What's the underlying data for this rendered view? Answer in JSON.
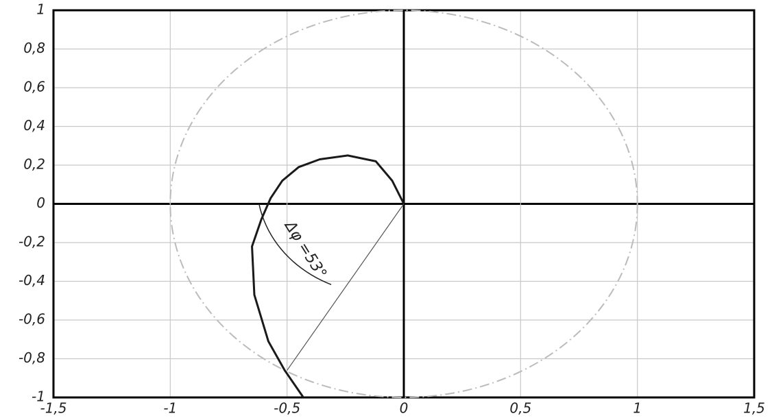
{
  "chart_data": {
    "type": "line",
    "x": [
      0,
      -0.05,
      -0.12,
      -0.24,
      -0.36,
      -0.45,
      -0.52,
      -0.57,
      -0.61,
      -0.65,
      -0.64,
      -0.58,
      -0.51,
      -0.43
    ],
    "series": [
      {
        "color": "#1a1a1a",
        "values": [
          0,
          0.12,
          0.22,
          0.25,
          0.23,
          0.19,
          0.12,
          0.03,
          -0.08,
          -0.22,
          -0.47,
          -0.71,
          -0.86,
          -1.0
        ]
      }
    ],
    "xlim": [
      -1.5,
      1.5
    ],
    "xticks": [
      {
        "value": -1.5,
        "label": "-1,5"
      },
      -1,
      {
        "value": -0.5,
        "label": "-0,5"
      },
      0,
      {
        "value": 0.5,
        "label": "0,5"
      },
      1,
      {
        "value": 1.5,
        "label": "1,5"
      }
    ],
    "ylim": [
      -1,
      1
    ],
    "yticks": [
      -1,
      {
        "value": -0.8,
        "label": "-0,8"
      },
      {
        "value": -0.6,
        "label": "-0,6"
      },
      {
        "value": -0.4,
        "label": "-0,4"
      },
      {
        "value": -0.2,
        "label": "-0,2"
      },
      0,
      {
        "value": 0.2,
        "label": "0,2"
      },
      {
        "value": 0.4,
        "label": "0,4"
      },
      {
        "value": 0.6,
        "label": "0,6"
      },
      {
        "value": 0.8,
        "label": "0,8"
      },
      1
    ],
    "grid": true,
    "annotations": [
      "Δφ =53°"
    ]
  }
}
